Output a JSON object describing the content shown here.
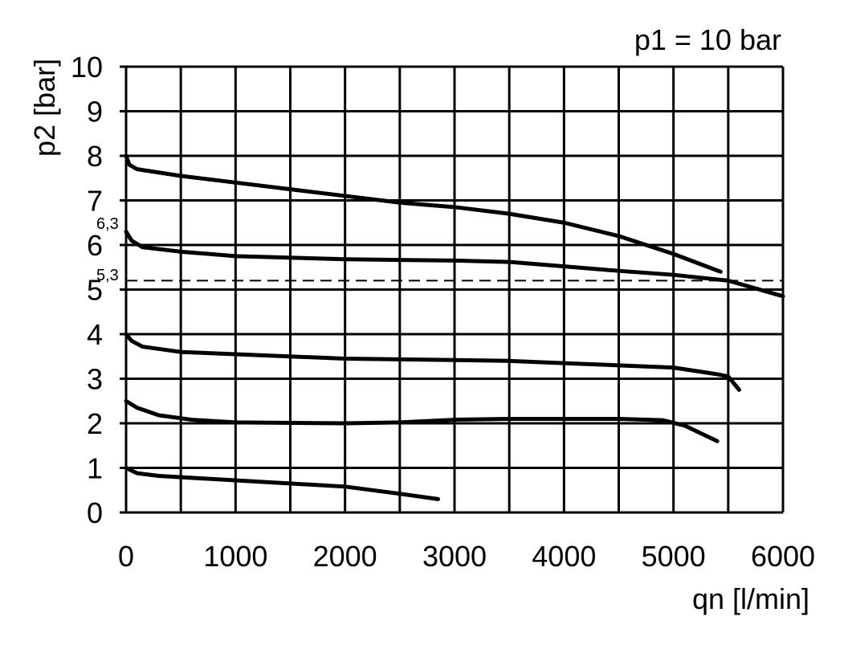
{
  "chart_data": {
    "type": "line",
    "annotation": "p1 = 10 bar",
    "xlabel": "qn [l/min]",
    "ylabel": "p2 [bar]",
    "xlim": [
      0,
      6000
    ],
    "ylim": [
      0,
      10
    ],
    "x_ticks": [
      "0",
      "1000",
      "2000",
      "3000",
      "4000",
      "5000",
      "6000"
    ],
    "y_ticks": [
      "0",
      "1",
      "2",
      "3",
      "4",
      "5",
      "6",
      "7",
      "8",
      "9",
      "10"
    ],
    "grid": true,
    "x_grid_step": 500,
    "y_grid_step": 1,
    "extra_labels": [
      {
        "text": "6,3",
        "value": 6.3
      },
      {
        "text": "5,3",
        "value": 5.3
      }
    ],
    "reference_line": {
      "y": 5.2,
      "style": "dashed"
    },
    "color": "#000000",
    "series": [
      {
        "points": [
          [
            0,
            8
          ],
          [
            30,
            7.8
          ],
          [
            100,
            7.7
          ],
          [
            500,
            7.55
          ],
          [
            1000,
            7.4
          ],
          [
            1500,
            7.25
          ],
          [
            2000,
            7.1
          ],
          [
            2500,
            6.95
          ],
          [
            3000,
            6.85
          ],
          [
            3500,
            6.7
          ],
          [
            4000,
            6.5
          ],
          [
            4500,
            6.2
          ],
          [
            5000,
            5.8
          ],
          [
            5430,
            5.4
          ]
        ]
      },
      {
        "points": [
          [
            0,
            6.3
          ],
          [
            50,
            6.1
          ],
          [
            150,
            5.95
          ],
          [
            500,
            5.85
          ],
          [
            1000,
            5.75
          ],
          [
            2000,
            5.68
          ],
          [
            3000,
            5.65
          ],
          [
            3500,
            5.62
          ],
          [
            4000,
            5.52
          ],
          [
            4500,
            5.42
          ],
          [
            5000,
            5.33
          ],
          [
            5500,
            5.2
          ],
          [
            6000,
            4.85
          ]
        ]
      },
      {
        "points": [
          [
            0,
            4.0
          ],
          [
            50,
            3.85
          ],
          [
            150,
            3.72
          ],
          [
            500,
            3.6
          ],
          [
            1000,
            3.55
          ],
          [
            2000,
            3.45
          ],
          [
            3000,
            3.42
          ],
          [
            3500,
            3.4
          ],
          [
            4000,
            3.35
          ],
          [
            4500,
            3.3
          ],
          [
            5000,
            3.25
          ],
          [
            5400,
            3.1
          ],
          [
            5500,
            3.05
          ],
          [
            5600,
            2.75
          ]
        ]
      },
      {
        "points": [
          [
            0,
            2.5
          ],
          [
            100,
            2.35
          ],
          [
            300,
            2.18
          ],
          [
            600,
            2.08
          ],
          [
            1000,
            2.02
          ],
          [
            2000,
            2.0
          ],
          [
            2500,
            2.02
          ],
          [
            3000,
            2.08
          ],
          [
            3500,
            2.1
          ],
          [
            4000,
            2.1
          ],
          [
            4500,
            2.1
          ],
          [
            4900,
            2.07
          ],
          [
            5100,
            1.95
          ],
          [
            5400,
            1.6
          ]
        ]
      },
      {
        "points": [
          [
            0,
            1.0
          ],
          [
            100,
            0.88
          ],
          [
            300,
            0.82
          ],
          [
            1000,
            0.72
          ],
          [
            2000,
            0.58
          ],
          [
            2500,
            0.42
          ],
          [
            2850,
            0.3
          ]
        ]
      }
    ]
  }
}
